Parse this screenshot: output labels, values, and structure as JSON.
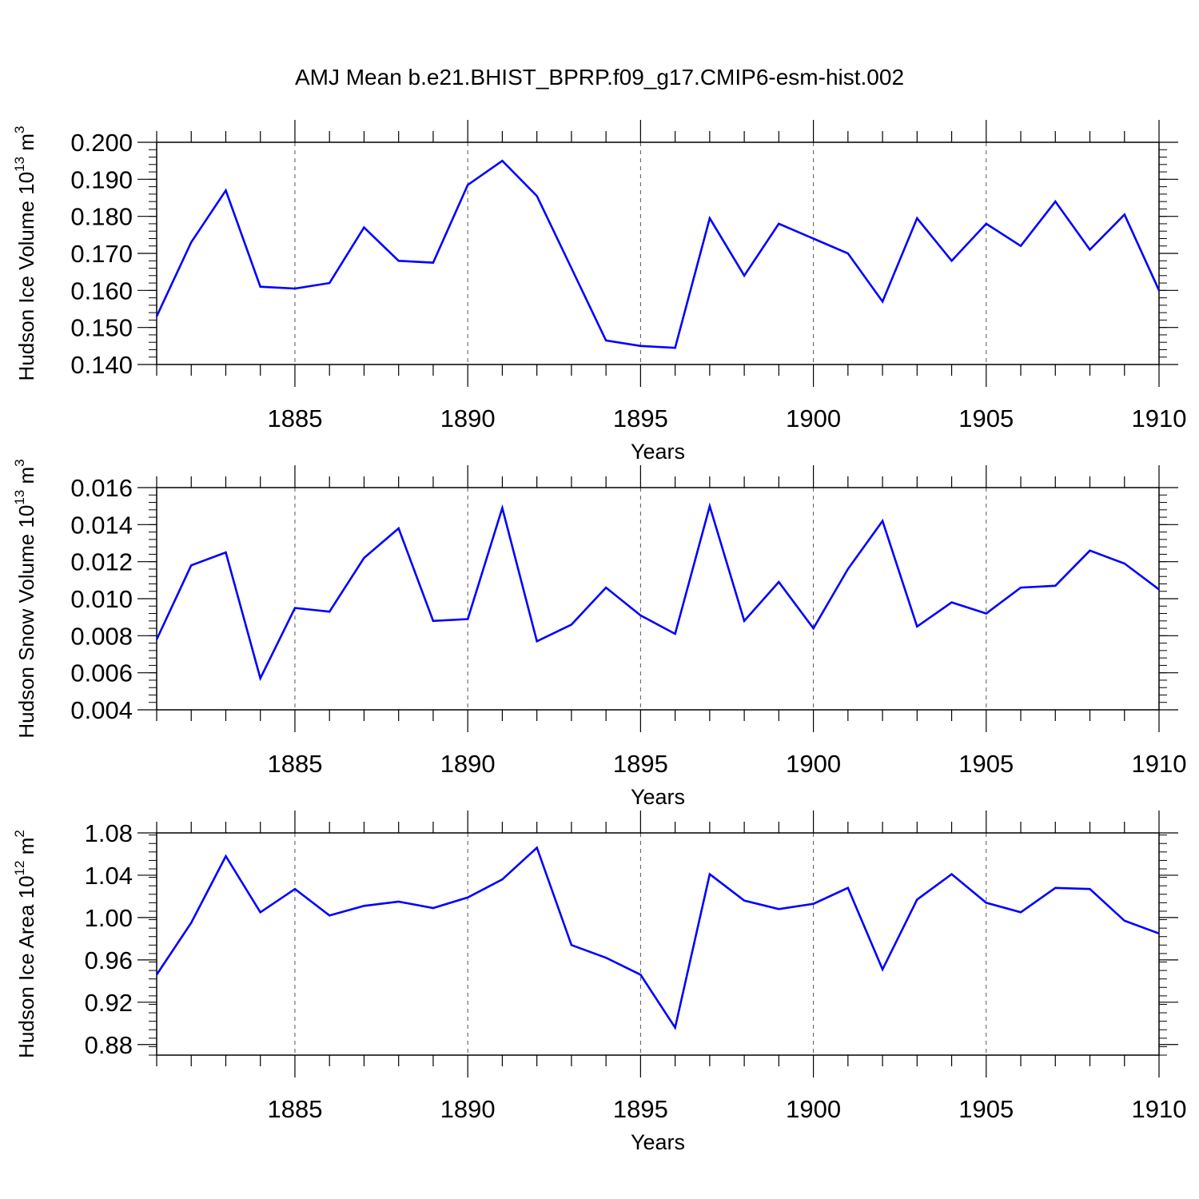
{
  "title": "AMJ Mean b.e21.BHIST_BPRP.f09_g17.CMIP6-esm-hist.002",
  "chart_data": [
    {
      "type": "line",
      "title": "AMJ Mean b.e21.BHIST_BPRP.f09_g17.CMIP6-esm-hist.002",
      "xlabel": "Years",
      "ylabel": "Hudson Ice Volume 10",
      "ylabel_exponent": "13",
      "ylabel_unit": "m",
      "ylabel_unit_exponent": "3",
      "xlim": [
        1881,
        1910
      ],
      "ylim": [
        0.14,
        0.2
      ],
      "x_ticks": [
        "1885",
        "1890",
        "1895",
        "1900",
        "1905",
        "1910"
      ],
      "y_ticks": [
        "0.140",
        "0.150",
        "0.160",
        "0.170",
        "0.180",
        "0.190",
        "0.200"
      ],
      "grid": "vertical dashed lines at labelled years",
      "line_color": "#0000ff",
      "x": [
        1881,
        1882,
        1883,
        1884,
        1885,
        1886,
        1887,
        1888,
        1889,
        1890,
        1891,
        1892,
        1893,
        1894,
        1895,
        1896,
        1897,
        1898,
        1899,
        1900,
        1901,
        1902,
        1903,
        1904,
        1905,
        1906,
        1907,
        1908,
        1909,
        1910
      ],
      "values": [
        0.153,
        0.173,
        0.187,
        0.161,
        0.1605,
        0.162,
        0.177,
        0.168,
        0.1675,
        0.1885,
        0.195,
        0.1855,
        0.166,
        0.1465,
        0.145,
        0.1445,
        0.1795,
        0.164,
        0.178,
        0.174,
        0.17,
        0.157,
        0.1795,
        0.168,
        0.178,
        0.172,
        0.184,
        0.171,
        0.1805,
        0.16
      ]
    },
    {
      "type": "line",
      "xlabel": "Years",
      "ylabel": "Hudson Snow Volume 10",
      "ylabel_exponent": "13",
      "ylabel_unit": "m",
      "ylabel_unit_exponent": "3",
      "xlim": [
        1881,
        1910
      ],
      "ylim": [
        0.004,
        0.016
      ],
      "x_ticks": [
        "1885",
        "1890",
        "1895",
        "1900",
        "1905",
        "1910"
      ],
      "y_ticks": [
        "0.004",
        "0.006",
        "0.008",
        "0.010",
        "0.012",
        "0.014",
        "0.016"
      ],
      "grid": "vertical dashed lines at labelled years",
      "line_color": "#0000ff",
      "x": [
        1881,
        1882,
        1883,
        1884,
        1885,
        1886,
        1887,
        1888,
        1889,
        1890,
        1891,
        1892,
        1893,
        1894,
        1895,
        1896,
        1897,
        1898,
        1899,
        1900,
        1901,
        1902,
        1903,
        1904,
        1905,
        1906,
        1907,
        1908,
        1909,
        1910
      ],
      "values": [
        0.0078,
        0.0118,
        0.0125,
        0.0057,
        0.0095,
        0.0093,
        0.0122,
        0.0138,
        0.0088,
        0.0089,
        0.0149,
        0.0077,
        0.0086,
        0.0106,
        0.0091,
        0.0081,
        0.015,
        0.0088,
        0.0109,
        0.0084,
        0.0116,
        0.0142,
        0.0085,
        0.0098,
        0.0092,
        0.0106,
        0.0107,
        0.0126,
        0.0119,
        0.0105
      ]
    },
    {
      "type": "line",
      "xlabel": "Years",
      "ylabel": "Hudson Ice Area 10",
      "ylabel_exponent": "12",
      "ylabel_unit": "m",
      "ylabel_unit_exponent": "2",
      "xlim": [
        1881,
        1910
      ],
      "ylim": [
        0.87,
        1.08
      ],
      "x_ticks": [
        "1885",
        "1890",
        "1895",
        "1900",
        "1905",
        "1910"
      ],
      "y_ticks": [
        "0.88",
        "0.92",
        "0.96",
        "1.00",
        "1.04",
        "1.08"
      ],
      "grid": "vertical dashed lines at labelled years",
      "line_color": "#0000ff",
      "x": [
        1881,
        1882,
        1883,
        1884,
        1885,
        1886,
        1887,
        1888,
        1889,
        1890,
        1891,
        1892,
        1893,
        1894,
        1895,
        1896,
        1897,
        1898,
        1899,
        1900,
        1901,
        1902,
        1903,
        1904,
        1905,
        1906,
        1907,
        1908,
        1909,
        1910
      ],
      "values": [
        0.946,
        0.995,
        1.058,
        1.005,
        1.027,
        1.002,
        1.011,
        1.015,
        1.009,
        1.019,
        1.036,
        1.066,
        0.974,
        0.962,
        0.946,
        0.896,
        1.041,
        1.016,
        1.008,
        1.013,
        1.028,
        0.951,
        1.017,
        1.041,
        1.014,
        1.005,
        1.028,
        1.027,
        0.997,
        0.985
      ]
    }
  ]
}
